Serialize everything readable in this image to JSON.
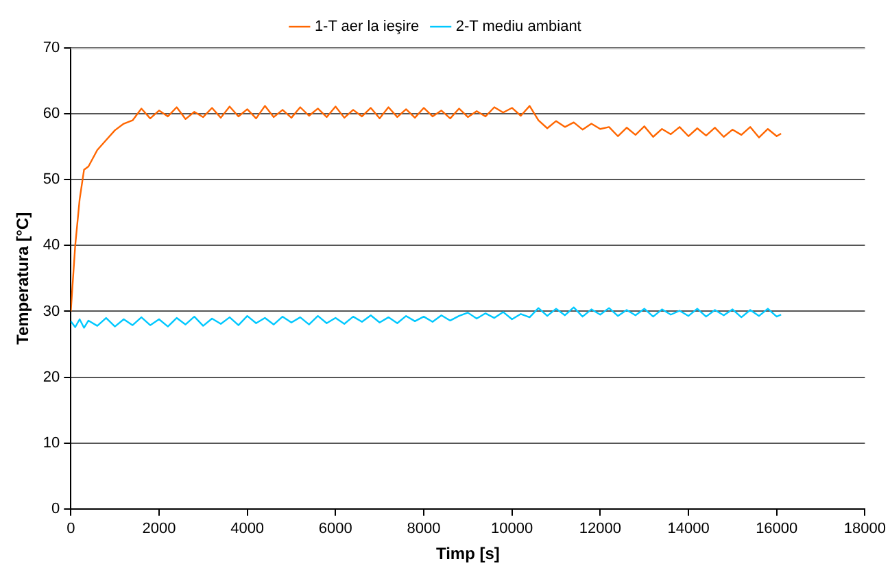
{
  "chart_data": {
    "type": "line",
    "xlabel": "Timp [s]",
    "ylabel": "Temperatura [°C]",
    "x": [
      0,
      100,
      200,
      300,
      400,
      600,
      800,
      1000,
      1200,
      1400,
      1600,
      1800,
      2000,
      2200,
      2400,
      2600,
      2800,
      3000,
      3200,
      3400,
      3600,
      3800,
      4000,
      4200,
      4400,
      4600,
      4800,
      5000,
      5200,
      5400,
      5600,
      5800,
      6000,
      6200,
      6400,
      6600,
      6800,
      7000,
      7200,
      7400,
      7600,
      7800,
      8000,
      8200,
      8400,
      8600,
      8800,
      9000,
      9200,
      9400,
      9600,
      9800,
      10000,
      10200,
      10400,
      10600,
      10800,
      11000,
      11200,
      11400,
      11600,
      11800,
      12000,
      12200,
      12400,
      12600,
      12800,
      13000,
      13200,
      13400,
      13600,
      13800,
      14000,
      14200,
      14400,
      14600,
      14800,
      15000,
      15200,
      15400,
      15600,
      15800,
      16000,
      16100
    ],
    "series": [
      {
        "name": "1-T aer la ieşire",
        "color": "#ff6600",
        "values": [
          30,
          40,
          47,
          51.5,
          52,
          54.5,
          56,
          57.5,
          58.5,
          59,
          60.8,
          59.3,
          60.5,
          59.6,
          61,
          59.2,
          60.3,
          59.5,
          60.9,
          59.4,
          61.1,
          59.6,
          60.7,
          59.3,
          61.2,
          59.5,
          60.6,
          59.4,
          61,
          59.7,
          60.8,
          59.5,
          61.1,
          59.4,
          60.6,
          59.6,
          60.9,
          59.3,
          61,
          59.5,
          60.7,
          59.4,
          60.9,
          59.6,
          60.5,
          59.3,
          60.8,
          59.5,
          60.4,
          59.6,
          61,
          60.2,
          60.9,
          59.7,
          61.2,
          59,
          57.8,
          58.9,
          58,
          58.7,
          57.6,
          58.5,
          57.7,
          58,
          56.6,
          57.9,
          56.8,
          58.1,
          56.5,
          57.7,
          56.9,
          58,
          56.6,
          57.8,
          56.7,
          57.9,
          56.5,
          57.6,
          56.8,
          58,
          56.4,
          57.7,
          56.6,
          57
        ]
      },
      {
        "name": "2-T mediu ambiant",
        "color": "#00c8ff",
        "values": [
          28.5,
          27.6,
          28.8,
          27.5,
          28.6,
          27.8,
          29,
          27.7,
          28.8,
          27.9,
          29.1,
          27.9,
          28.8,
          27.7,
          29,
          28,
          29.2,
          27.8,
          28.9,
          28.1,
          29.1,
          27.9,
          29.3,
          28.2,
          29,
          28,
          29.2,
          28.3,
          29.1,
          28,
          29.3,
          28.2,
          29,
          28.1,
          29.2,
          28.4,
          29.4,
          28.3,
          29.1,
          28.2,
          29.3,
          28.5,
          29.2,
          28.4,
          29.4,
          28.6,
          29.3,
          29.8,
          28.9,
          29.7,
          29,
          29.9,
          28.8,
          29.6,
          29.1,
          30.5,
          29.3,
          30.4,
          29.4,
          30.6,
          29.2,
          30.3,
          29.5,
          30.5,
          29.3,
          30.2,
          29.4,
          30.4,
          29.2,
          30.3,
          29.5,
          30.1,
          29.3,
          30.4,
          29.2,
          30.2,
          29.4,
          30.3,
          29.1,
          30.2,
          29.3,
          30.4,
          29.2,
          29.5
        ]
      }
    ],
    "xlim": [
      0,
      18000
    ],
    "xticks": [
      0,
      2000,
      4000,
      6000,
      8000,
      10000,
      12000,
      14000,
      16000,
      18000
    ],
    "ylim": [
      0,
      70
    ],
    "yticks": [
      0,
      10,
      20,
      30,
      40,
      50,
      60,
      70
    ],
    "grid": "y",
    "legend": "top",
    "marker": "none",
    "line_style": "solid"
  }
}
